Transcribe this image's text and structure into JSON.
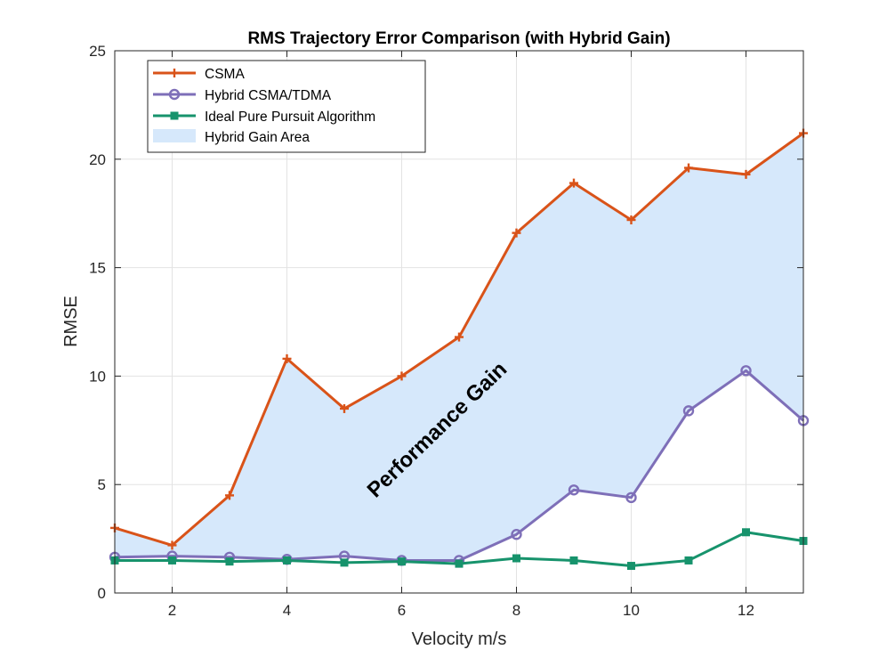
{
  "chart_data": {
    "type": "line",
    "title": "RMS Trajectory Error Comparison (with Hybrid Gain)",
    "xlabel": "Velocity m/s",
    "ylabel": "RMSE",
    "xlim": [
      1,
      13
    ],
    "ylim": [
      0,
      25
    ],
    "xticks": [
      2,
      4,
      6,
      8,
      10,
      12
    ],
    "yticks": [
      0,
      5,
      10,
      15,
      20,
      25
    ],
    "grid": true,
    "legend_position": "top-left",
    "x": [
      1,
      2,
      3,
      4,
      5,
      6,
      7,
      8,
      9,
      10,
      11,
      12,
      13
    ],
    "series": [
      {
        "name": "CSMA",
        "color": "#D95319",
        "marker": "plus",
        "values": [
          3.0,
          2.2,
          4.5,
          10.8,
          8.5,
          10.0,
          11.8,
          16.6,
          18.9,
          17.2,
          19.6,
          19.3,
          21.2
        ]
      },
      {
        "name": "Hybrid CSMA/TDMA",
        "color": "#7E6FB8",
        "marker": "circle",
        "values": [
          1.65,
          1.7,
          1.65,
          1.55,
          1.7,
          1.5,
          1.5,
          2.7,
          4.75,
          4.4,
          8.4,
          10.25,
          7.95
        ]
      },
      {
        "name": "Ideal Pure Pursuit Algorithm",
        "color": "#17936C",
        "marker": "square",
        "values": [
          1.5,
          1.5,
          1.45,
          1.5,
          1.4,
          1.45,
          1.35,
          1.6,
          1.5,
          1.25,
          1.5,
          2.8,
          2.4
        ]
      }
    ],
    "area": {
      "name": "Hybrid Gain Area",
      "color": "#D6E8FB",
      "between": [
        "CSMA",
        "Hybrid CSMA/TDMA"
      ]
    },
    "annotation": {
      "text": "Performance Gain",
      "x": 6.7,
      "y": 7.3,
      "rotation_deg": -44
    }
  }
}
